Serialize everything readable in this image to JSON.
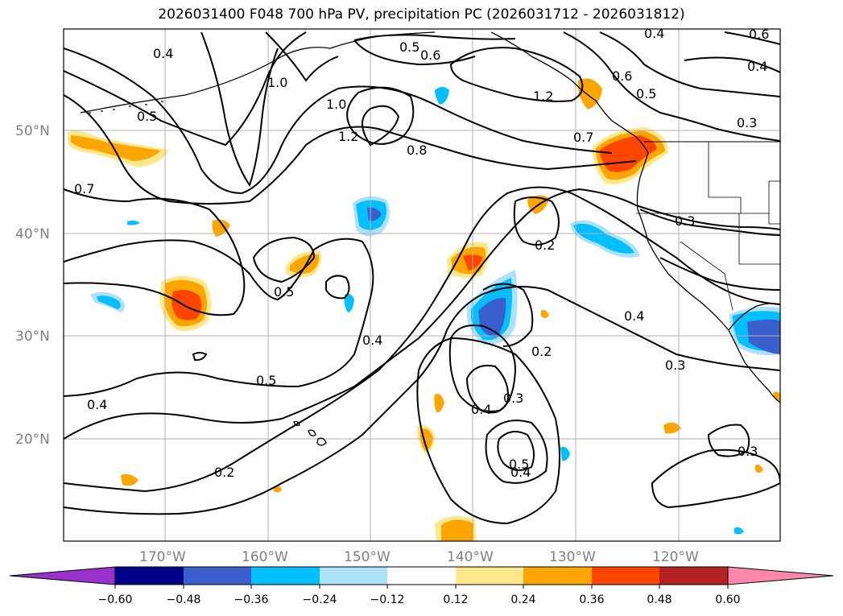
{
  "title": "2026031400 F048 700 hPa PV, precipitation PC (2026031712 - 2026031812)",
  "map": {
    "lat_labels": [
      "50°N",
      "40°N",
      "30°N",
      "20°N"
    ],
    "lon_labels": [
      "170°W",
      "160°W",
      "150°W",
      "140°W",
      "130°W",
      "120°W"
    ],
    "contour_labels": [
      "0.4",
      "0.5",
      "0.6",
      "1.0",
      "1.2",
      "0.5",
      "0.6",
      "0.7",
      "1.0",
      "1.2",
      "0.8",
      "0.7",
      "0.6",
      "0.5",
      "0.4",
      "0.4",
      "0.3",
      "0.3",
      "0.2",
      "0.5",
      "0.4",
      "0.2",
      "0.4",
      "0.3",
      "0.5",
      "0.4",
      "0.4",
      "0.3",
      "0.5",
      "0.2",
      "0.4",
      "0.3"
    ],
    "colors": {
      "purple": "#9932CC",
      "navy": "#00008B",
      "royalblue": "#3A5FCD",
      "deepskyblue": "#00BFFF",
      "lightblue": "#ADE1FA",
      "white": "#FFFFFF",
      "lightyellow": "#FFE88C",
      "orange": "#FFA500",
      "orangered": "#FF4500",
      "firebrick": "#B22222",
      "pink": "#FF88AA"
    }
  },
  "colorbar": {
    "ticks": [
      "−0.60",
      "−0.48",
      "−0.36",
      "−0.24",
      "−0.12",
      "0.12",
      "0.24",
      "0.36",
      "0.48",
      "0.60"
    ]
  }
}
